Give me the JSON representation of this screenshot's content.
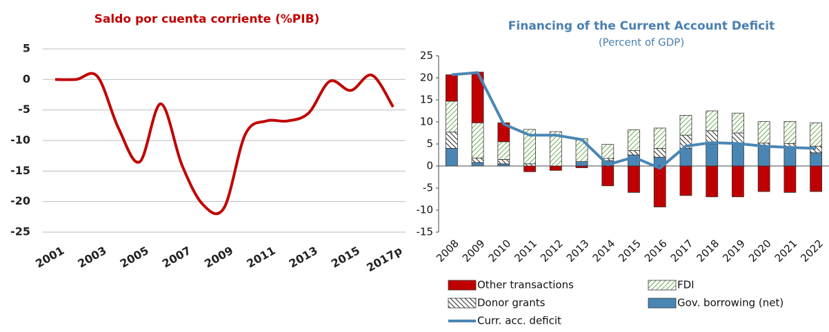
{
  "charts": [
    {
      "type": "line",
      "title": "Saldo por cuenta corriente (%PIB)",
      "title_color": "#c00000",
      "categories": [
        "2001",
        null,
        "2003",
        null,
        "2005",
        null,
        "2007",
        null,
        "2009",
        null,
        "2011",
        null,
        "2013",
        null,
        "2015",
        null,
        "2017p"
      ],
      "series": [
        {
          "color": "#c00000",
          "values": [
            0,
            0,
            0.5,
            -8,
            -13.5,
            -4,
            -14,
            -20.5,
            -21,
            -9,
            -6.8,
            -6.8,
            -5.5,
            -0.3,
            -1.8,
            0.7,
            -4.5
          ]
        }
      ],
      "ylim": [
        -25,
        5
      ],
      "yticks": [
        -25,
        -20,
        -15,
        -10,
        -5,
        0,
        5
      ],
      "grid": true,
      "smooth": true
    },
    {
      "type": "bar",
      "stacked": true,
      "title": "Financing of the Current Account Deficit",
      "subtitle": "(Percent of GDP)",
      "title_color": "#4a7fb0",
      "categories": [
        "2008",
        "2009",
        "2010",
        "2011",
        "2012",
        "2013",
        "2014",
        "2015",
        "2016",
        "2017",
        "2018",
        "2019",
        "2020",
        "2021",
        "2022"
      ],
      "series": [
        {
          "name": "Gov. borrowing (net)",
          "color": "#4a86b4",
          "pattern": "solid",
          "values": [
            4,
            0.8,
            0.5,
            0,
            0,
            1,
            1.2,
            2.5,
            2,
            4,
            5,
            5,
            4.5,
            4.3,
            3
          ]
        },
        {
          "name": "Donor grants",
          "color": "#222222",
          "pattern": "hatch",
          "values": [
            3.7,
            1,
            1,
            0.5,
            0,
            0,
            0.5,
            1,
            2,
            3,
            3,
            2.5,
            0.7,
            0.8,
            1.5
          ]
        },
        {
          "name": "FDI",
          "color": "#6aa84f",
          "pattern": "hatch",
          "values": [
            7,
            8,
            4,
            7.8,
            7.8,
            5.2,
            3.2,
            4.7,
            4.6,
            4.5,
            4.5,
            4.5,
            4.9,
            5,
            5.3
          ]
        },
        {
          "name": "Other transactions",
          "color": "#c00000",
          "pattern": "solid",
          "values": [
            6,
            11.5,
            4.3,
            -1.3,
            -1,
            -0.4,
            -4.5,
            -6,
            -9.3,
            -6.7,
            -7,
            -7,
            -5.8,
            -6,
            -5.8
          ]
        },
        {
          "name": "Curr. acc. deficit",
          "type": "line",
          "color": "#4a86b4",
          "values": [
            20.7,
            21.2,
            9.5,
            7,
            7,
            6,
            0.3,
            2,
            -0.5,
            4.5,
            5.3,
            5.1,
            4.5,
            4.2,
            4
          ]
        }
      ],
      "legend_order": [
        3,
        2,
        1,
        0,
        4
      ],
      "ylim": [
        -15,
        25
      ],
      "yticks": [
        -15,
        -10,
        -5,
        0,
        5,
        10,
        15,
        20,
        25
      ],
      "grid": false
    }
  ]
}
